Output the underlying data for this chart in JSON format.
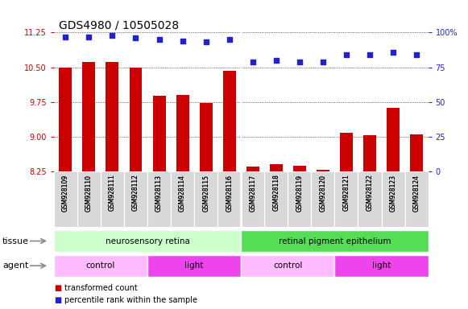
{
  "title": "GDS4980 / 10505028",
  "samples": [
    "GSM928109",
    "GSM928110",
    "GSM928111",
    "GSM928112",
    "GSM928113",
    "GSM928114",
    "GSM928115",
    "GSM928116",
    "GSM928117",
    "GSM928118",
    "GSM928119",
    "GSM928120",
    "GSM928121",
    "GSM928122",
    "GSM928123",
    "GSM928124"
  ],
  "bar_values": [
    10.5,
    10.62,
    10.62,
    10.5,
    9.88,
    9.9,
    9.72,
    10.42,
    8.35,
    8.4,
    8.38,
    8.28,
    9.08,
    9.03,
    9.62,
    9.05
  ],
  "dot_values": [
    97,
    97,
    98,
    96,
    95,
    94,
    93,
    95,
    79,
    80,
    79,
    79,
    84,
    84,
    86,
    84
  ],
  "ylim_left": [
    8.25,
    11.25
  ],
  "ylim_right": [
    0,
    100
  ],
  "yticks_left": [
    8.25,
    9.0,
    9.75,
    10.5,
    11.25
  ],
  "yticks_right": [
    0,
    25,
    50,
    75,
    100
  ],
  "bar_color": "#cc0000",
  "dot_color": "#2222cc",
  "grid_color": "#000000",
  "bg_color": "#d8d8d8",
  "plot_bg": "#ffffff",
  "tissue_groups": [
    {
      "label": "neurosensory retina",
      "start": 0,
      "end": 8,
      "color": "#ccffcc"
    },
    {
      "label": "retinal pigment epithelium",
      "start": 8,
      "end": 16,
      "color": "#55dd55"
    }
  ],
  "agent_groups": [
    {
      "label": "control",
      "start": 0,
      "end": 4,
      "color": "#ffbbff"
    },
    {
      "label": "light",
      "start": 4,
      "end": 8,
      "color": "#ee44ee"
    },
    {
      "label": "control",
      "start": 8,
      "end": 12,
      "color": "#ffbbff"
    },
    {
      "label": "light",
      "start": 12,
      "end": 16,
      "color": "#ee44ee"
    }
  ],
  "tissue_label": "tissue",
  "agent_label": "agent",
  "legend_items": [
    {
      "label": "transformed count",
      "color": "#cc0000"
    },
    {
      "label": "percentile rank within the sample",
      "color": "#2222cc"
    }
  ],
  "left_color": "#cc0000",
  "right_color": "#2222cc",
  "title_fontsize": 10,
  "tick_fontsize": 7,
  "label_fontsize": 8,
  "bar_width": 0.55
}
